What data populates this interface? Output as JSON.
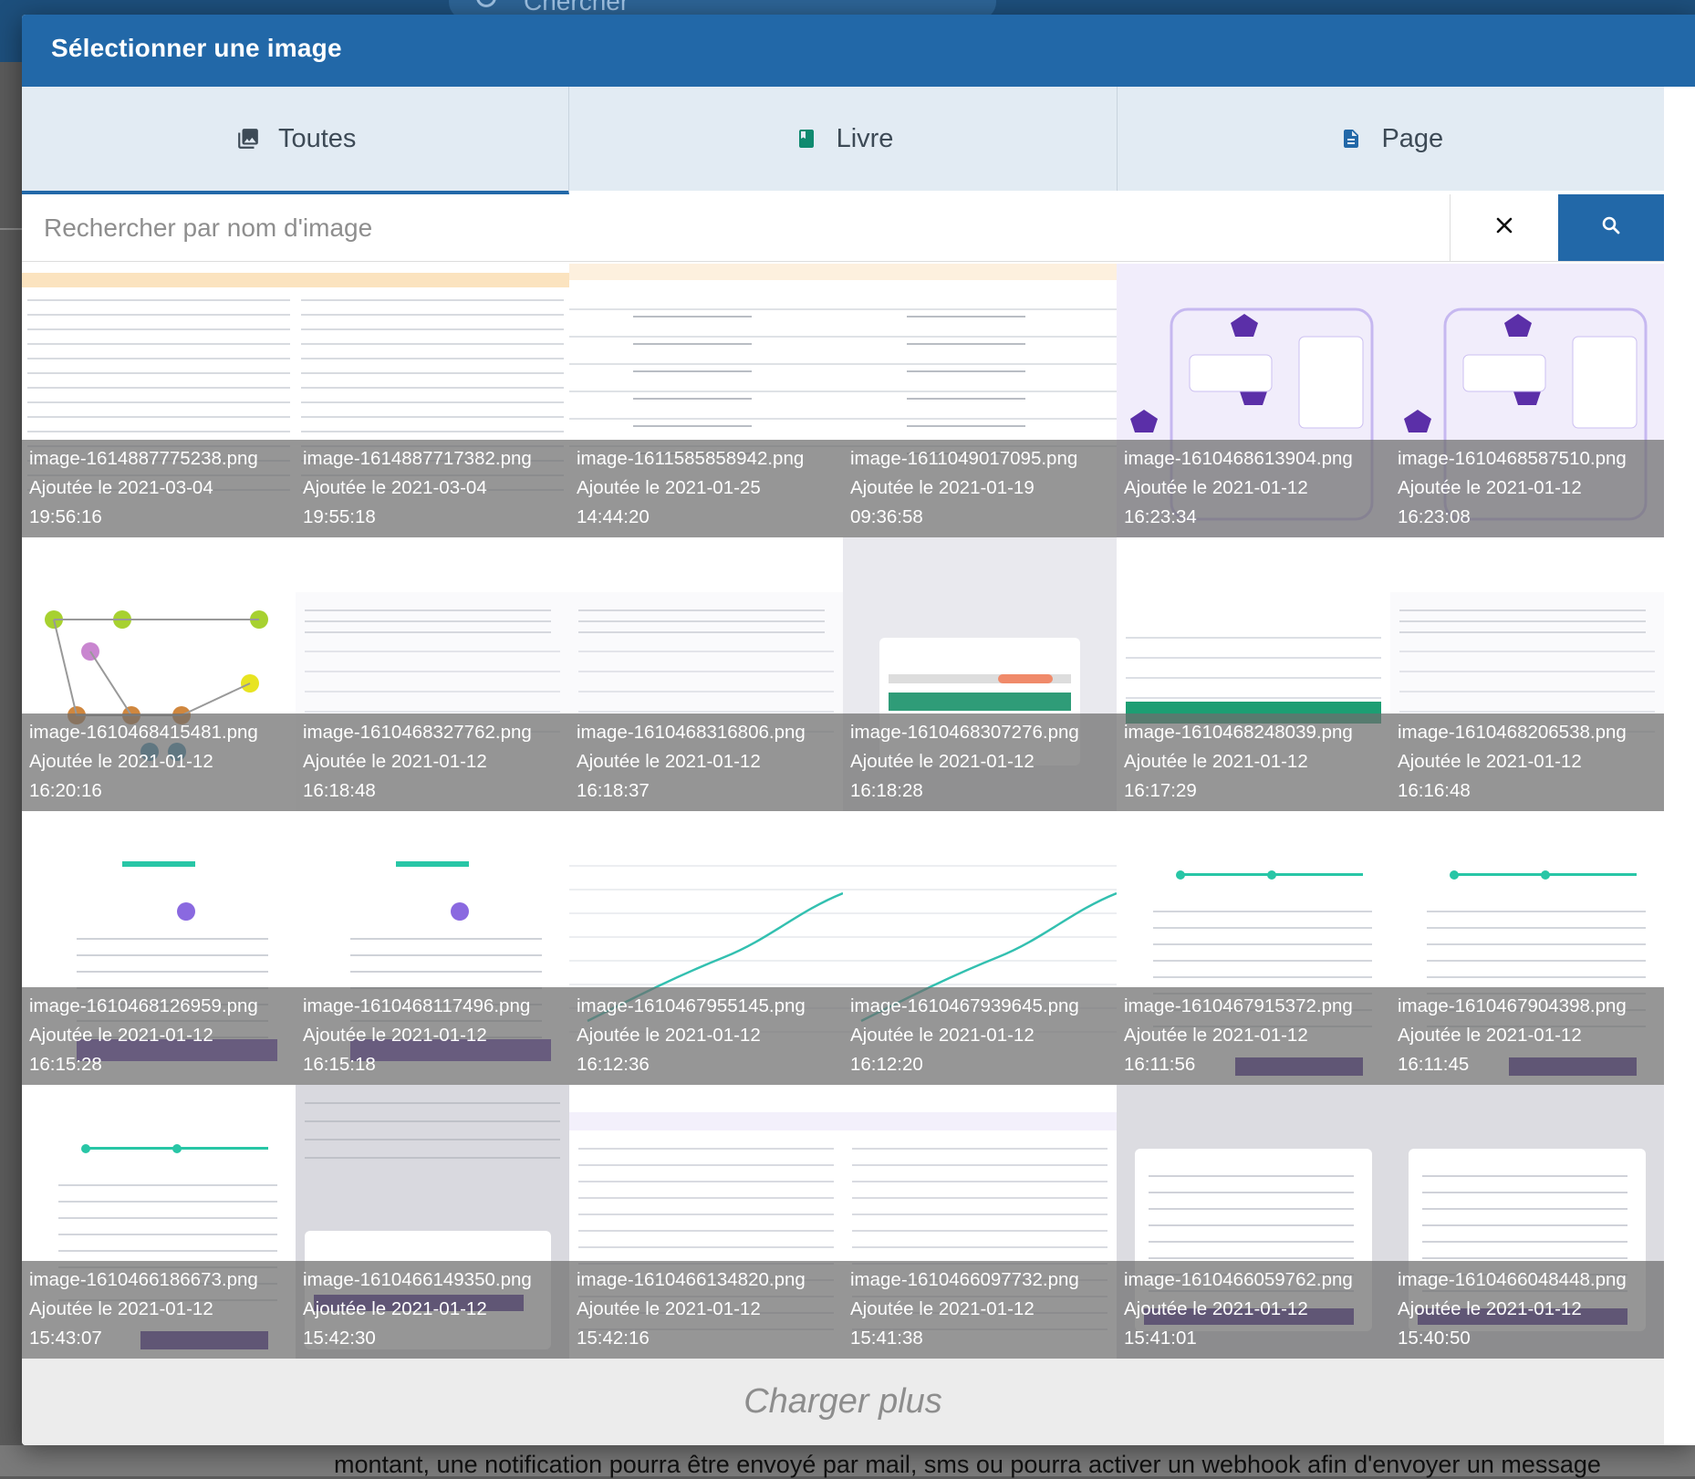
{
  "background": {
    "search_placeholder": "Chercher",
    "bottom_text": "montant, une notification pourra être envoyé par mail, sms ou pourra activer un webhook afin d'envoyer un message"
  },
  "modal": {
    "title": "Sélectionner une image",
    "tabs": [
      {
        "label": "Toutes",
        "icon": "images-icon",
        "active": true
      },
      {
        "label": "Livre",
        "icon": "book-icon",
        "active": false
      },
      {
        "label": "Page",
        "icon": "document-icon",
        "active": false
      }
    ],
    "search": {
      "placeholder": "Rechercher par nom d'image",
      "value": ""
    },
    "load_more_label": "Charger plus",
    "accent_color": "#2268a8"
  },
  "images": [
    {
      "name": "image-1614887775238.png",
      "added": "Ajoutée le 2021-03-04",
      "time": "19:56:16",
      "thumb": "env-table"
    },
    {
      "name": "image-1614887717382.png",
      "added": "Ajoutée le 2021-03-04",
      "time": "19:55:18",
      "thumb": "env-table"
    },
    {
      "name": "image-1611585858942.png",
      "added": "Ajoutée le 2021-01-25",
      "time": "14:44:20",
      "thumb": "env-table-zoom"
    },
    {
      "name": "image-1611049017095.png",
      "added": "Ajoutée le 2021-01-19",
      "time": "09:36:58",
      "thumb": "env-table-zoom"
    },
    {
      "name": "image-1610468613904.png",
      "added": "Ajoutée le 2021-01-12",
      "time": "16:23:34",
      "thumb": "scaleway-diagram"
    },
    {
      "name": "image-1610468587510.png",
      "added": "Ajoutée le 2021-01-12",
      "time": "16:23:08",
      "thumb": "scaleway-diagram"
    },
    {
      "name": "image-1610468415481.png",
      "added": "Ajoutée le 2021-01-12",
      "time": "16:20:16",
      "thumb": "git-flow"
    },
    {
      "name": "image-1610468327762.png",
      "added": "Ajoutée le 2021-01-12",
      "time": "16:18:48",
      "thumb": "dns-zone"
    },
    {
      "name": "image-1610468316806.png",
      "added": "Ajoutée le 2021-01-12",
      "time": "16:18:37",
      "thumb": "dns-zone"
    },
    {
      "name": "image-1610468307276.png",
      "added": "Ajoutée le 2021-01-12",
      "time": "16:18:28",
      "thumb": "dns-dialog"
    },
    {
      "name": "image-1610468248039.png",
      "added": "Ajoutée le 2021-01-12",
      "time": "16:17:29",
      "thumb": "dns-records"
    },
    {
      "name": "image-1610468206538.png",
      "added": "Ajoutée le 2021-01-12",
      "time": "16:16:48",
      "thumb": "dns-zone"
    },
    {
      "name": "image-1610468126959.png",
      "added": "Ajoutée le 2021-01-12",
      "time": "16:15:28",
      "thumb": "manage-domain"
    },
    {
      "name": "image-1610468117496.png",
      "added": "Ajoutée le 2021-01-12",
      "time": "16:15:18",
      "thumb": "manage-domain"
    },
    {
      "name": "image-1610467955145.png",
      "added": "Ajoutée le 2021-01-12",
      "time": "16:12:36",
      "thumb": "metrics-chart"
    },
    {
      "name": "image-1610467939645.png",
      "added": "Ajoutée le 2021-01-12",
      "time": "16:12:20",
      "thumb": "metrics-chart"
    },
    {
      "name": "image-1610467915372.png",
      "added": "Ajoutée le 2021-01-12",
      "time": "16:11:56",
      "thumb": "lifecycle-rule"
    },
    {
      "name": "image-1610467904398.png",
      "added": "Ajoutée le 2021-01-12",
      "time": "16:11:45",
      "thumb": "lifecycle-rule"
    },
    {
      "name": "image-1610466186673.png",
      "added": "Ajoutée le 2021-01-12",
      "time": "15:43:07",
      "thumb": "lifecycle-rule"
    },
    {
      "name": "image-1610466149350.png",
      "added": "Ajoutée le 2021-01-12",
      "time": "15:42:30",
      "thumb": "bucket-dialog"
    },
    {
      "name": "image-1610466134820.png",
      "added": "Ajoutée le 2021-01-12",
      "time": "15:42:16",
      "thumb": "bucket-info"
    },
    {
      "name": "image-1610466097732.png",
      "added": "Ajoutée le 2021-01-12",
      "time": "15:41:38",
      "thumb": "bucket-info"
    },
    {
      "name": "image-1610466059762.png",
      "added": "Ajoutée le 2021-01-12",
      "time": "15:41:01",
      "thumb": "object-dialog"
    },
    {
      "name": "image-1610466048448.png",
      "added": "Ajoutée le 2021-01-12",
      "time": "15:40:50",
      "thumb": "object-dialog"
    }
  ]
}
